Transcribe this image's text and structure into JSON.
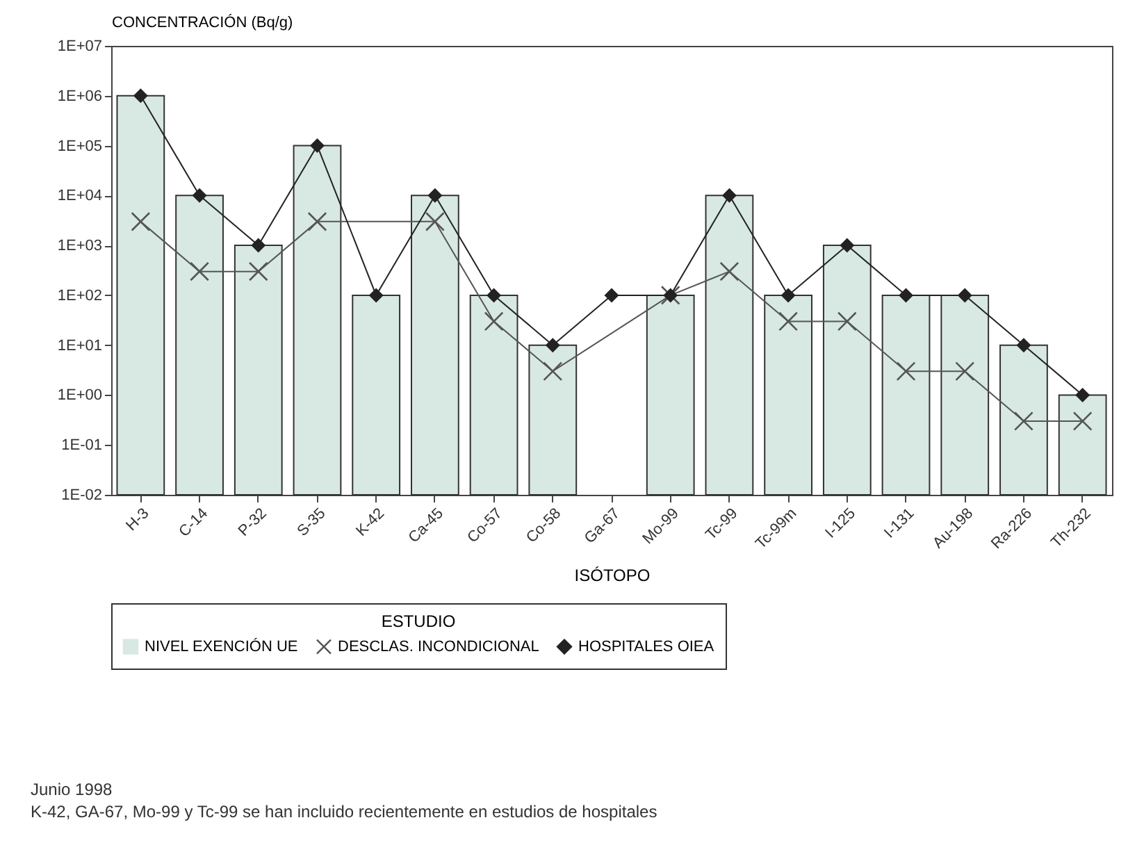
{
  "chart_data": {
    "type": "bar",
    "ylabel": "CONCENTRACIÓN (Bq/g)",
    "xlabel": "ISÓTOPO",
    "legend_title": "ESTUDIO",
    "legend": "bottom",
    "log": true,
    "grid": false,
    "categories": [
      "H-3",
      "C-14",
      "P-32",
      "S-35",
      "K-42",
      "Ca-45",
      "Co-57",
      "Co-58",
      "Ga-67",
      "Mo-99",
      "Tc-99",
      "Tc-99m",
      "I-125",
      "I-131",
      "Au-198",
      "Ra-226",
      "Th-232"
    ],
    "ylim": [
      0.01,
      10000000
    ],
    "yticks": [
      {
        "value": 0.01,
        "label": "1E-02"
      },
      {
        "value": 0.1,
        "label": "1E-01"
      },
      {
        "value": 1,
        "label": "1E+00"
      },
      {
        "value": 10,
        "label": "1E+01"
      },
      {
        "value": 100,
        "label": "1E+02"
      },
      {
        "value": 1000,
        "label": "1E+03"
      },
      {
        "value": 10000,
        "label": "1E+04"
      },
      {
        "value": 100000,
        "label": "1E+05"
      },
      {
        "value": 1000000,
        "label": "1E+06"
      },
      {
        "value": 10000000,
        "label": "1E+07"
      }
    ],
    "series": [
      {
        "name": "NIVEL EXENCIÓN UE",
        "color": "#d8e8e2",
        "values": [
          1000000,
          10000,
          1000,
          100000,
          100,
          10000,
          100,
          10,
          null,
          100,
          10000,
          100,
          1000,
          100,
          100,
          10,
          1
        ]
      },
      {
        "name": "DESCLAS. INCONDICIONAL",
        "type": "line",
        "marker": "cross",
        "color": "#555555",
        "values": [
          3000,
          300,
          300,
          3000,
          null,
          3000,
          30,
          3,
          null,
          100,
          300,
          30,
          30,
          3,
          3,
          0.3,
          0.3
        ]
      },
      {
        "name": "HOSPITALES OIEA",
        "type": "line",
        "marker": "diamond",
        "color": "#222222",
        "values": [
          1000000,
          10000,
          1000,
          100000,
          100,
          10000,
          100,
          10,
          100,
          100,
          10000,
          100,
          1000,
          100,
          100,
          10,
          1
        ]
      }
    ],
    "annotations": [
      "Junio 1998",
      "K-42, GA-67, Mo-99 y Tc-99 se han incluido recientemente en estudios de hospitales"
    ]
  }
}
